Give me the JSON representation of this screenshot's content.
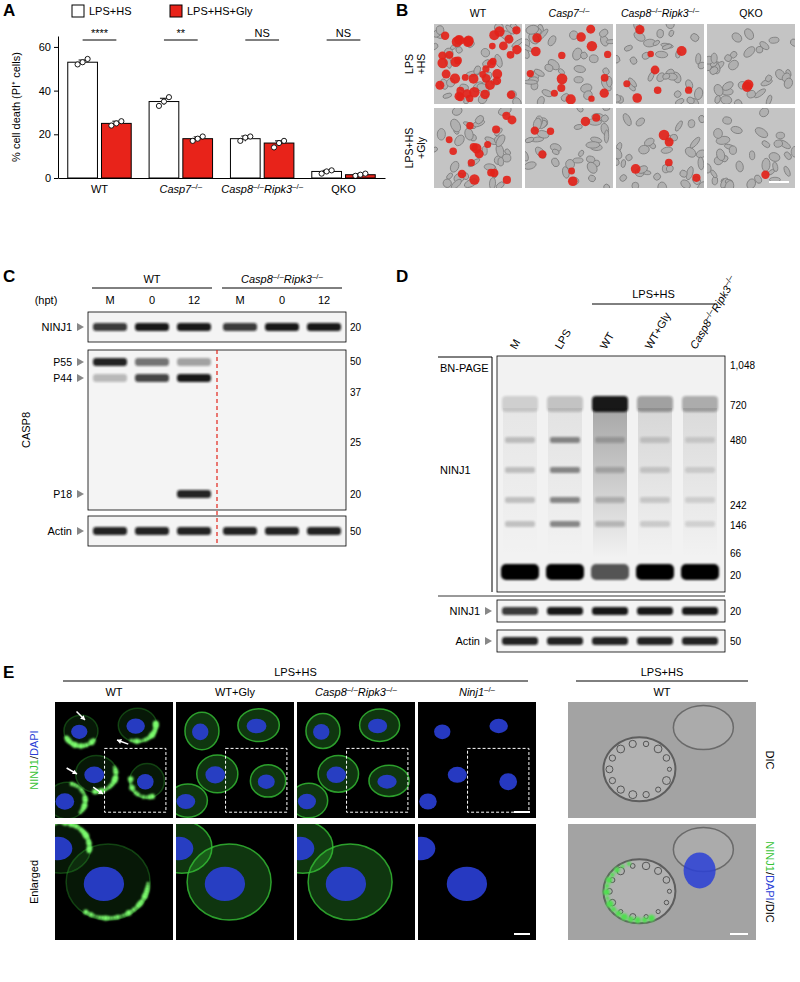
{
  "panel_labels": [
    "A",
    "B",
    "C",
    "D",
    "E"
  ],
  "chart_data": {
    "type": "bar",
    "y_label": "% cell death (PI⁺ cells)",
    "categories": [
      "WT",
      "Casp7–/–",
      "Casp8–/–Ripk3–/–",
      "QKO"
    ],
    "series": [
      {
        "name": "LPS+HS",
        "color": "#ffffff",
        "values": [
          53,
          35,
          18,
          3
        ],
        "error": [
          1,
          1.5,
          1.2,
          0.5
        ],
        "points": [
          [
            52,
            53,
            54.5
          ],
          [
            33,
            35,
            37
          ],
          [
            17,
            18.5,
            19
          ],
          [
            2,
            3,
            3.5
          ]
        ]
      },
      {
        "name": "LPS+HS+Gly",
        "color": "#e8231a",
        "values": [
          25,
          18,
          16,
          1.5
        ],
        "error": [
          1,
          0.8,
          1,
          0.4
        ],
        "points": [
          [
            24,
            25,
            26
          ],
          [
            17,
            18,
            19
          ],
          [
            14,
            16,
            17
          ],
          [
            1,
            1.5,
            2
          ]
        ]
      }
    ],
    "annotations": [
      "****",
      "**",
      "NS",
      "NS"
    ],
    "ylim": [
      0,
      65
    ],
    "yticks": [
      0,
      20,
      40,
      60
    ],
    "legend": "top"
  },
  "panel_b": {
    "columns": [
      "WT",
      "Casp7–/–",
      "Casp8–/–Ripk3–/–",
      "QKO"
    ],
    "rows": [
      [
        "LPS",
        "+HS"
      ],
      [
        "LPS+HS",
        "+Gly"
      ]
    ],
    "pi_positive_cells": [
      [
        40,
        15,
        8,
        2
      ],
      [
        16,
        7,
        5,
        1
      ]
    ]
  },
  "panel_c": {
    "time_label": "(hpt)",
    "groups": [
      {
        "label": "WT",
        "lanes": [
          "M",
          "0",
          "12"
        ]
      },
      {
        "label": "Casp8–/–Ripk3–/–",
        "lanes": [
          "M",
          "0",
          "12"
        ]
      }
    ],
    "blots": [
      {
        "label": "NINJ1",
        "markers": [
          20
        ],
        "bands": [
          {
            "intensity": [
              0.8,
              0.95,
              0.95,
              0.8,
              0.95,
              0.95
            ]
          }
        ]
      },
      {
        "label": "CASP8",
        "markers": [
          50,
          37,
          25,
          20
        ],
        "bands": [
          {
            "label": "P55",
            "intensity": [
              0.9,
              0.55,
              0.35,
              0,
              0,
              0
            ]
          },
          {
            "label": "P44",
            "intensity": [
              0.25,
              0.75,
              0.95,
              0,
              0,
              0
            ]
          },
          {
            "label": "P18",
            "intensity": [
              0,
              0,
              0.9,
              0,
              0,
              0
            ]
          }
        ]
      },
      {
        "label": "Actin",
        "markers": [
          50
        ],
        "bands": [
          {
            "intensity": [
              0.9,
              0.9,
              0.9,
              0.9,
              0.9,
              0.9
            ]
          }
        ]
      }
    ]
  },
  "panel_d": {
    "treatment": "LPS+HS",
    "lanes": [
      "M",
      "LPS",
      "WT",
      "WT+Gly",
      "Casp8–/–Ripk3–/–"
    ],
    "bn_page": {
      "label": "BN-PAGE",
      "protein": "NINJ1",
      "markers": [
        {
          "value": 1048,
          "label": "1,048"
        },
        720,
        480,
        242,
        146,
        66,
        20
      ],
      "oligomer_intensity": [
        0.15,
        0.2,
        0.95,
        0.35,
        0.3
      ],
      "ladder_intensity": [
        0.2,
        0.45,
        0.2,
        0.15,
        0.12
      ],
      "monomer_intensity": [
        1,
        1,
        0.65,
        1,
        1
      ]
    },
    "blots": [
      {
        "label": "NINJ1",
        "markers": [
          20
        ],
        "intensity": [
          0.8,
          0.95,
          0.95,
          0.95,
          0.95
        ]
      },
      {
        "label": "Actin",
        "markers": [
          50
        ],
        "intensity": [
          0.9,
          0.9,
          0.9,
          0.9,
          0.9
        ]
      }
    ]
  },
  "panel_e": {
    "treatment": "LPS+HS",
    "stain": "NINJ1/DAPI",
    "columns": [
      "WT",
      "WT+Gly",
      "Casp8–/–Ripk3–/–",
      "Ninj1–/–"
    ],
    "row_label": "Enlarged",
    "side": {
      "treatment": "LPS+HS",
      "column": "WT",
      "rows": [
        "DIC",
        "NINJ1/DAPI/DIC"
      ]
    }
  }
}
